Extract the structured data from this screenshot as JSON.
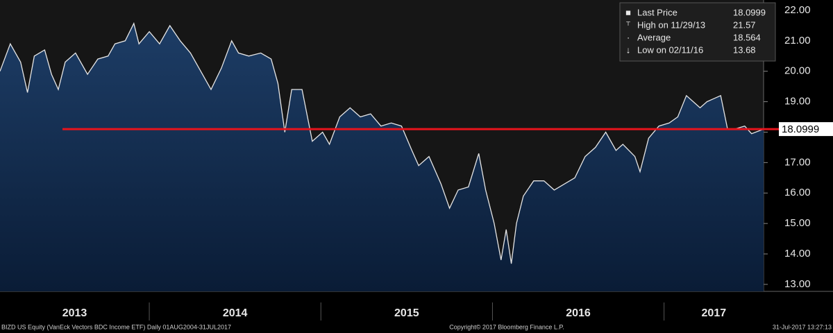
{
  "chart_data": {
    "type": "area",
    "x": [
      2013.13,
      2013.19,
      2013.25,
      2013.29,
      2013.33,
      2013.39,
      2013.43,
      2013.47,
      2013.51,
      2013.57,
      2013.64,
      2013.7,
      2013.76,
      2013.8,
      2013.86,
      2013.91,
      2013.94,
      2014.0,
      2014.06,
      2014.12,
      2014.18,
      2014.24,
      2014.3,
      2014.36,
      2014.42,
      2014.48,
      2014.52,
      2014.58,
      2014.65,
      2014.71,
      2014.75,
      2014.79,
      2014.83,
      2014.89,
      2014.95,
      2015.01,
      2015.05,
      2015.11,
      2015.17,
      2015.23,
      2015.29,
      2015.35,
      2015.41,
      2015.47,
      2015.53,
      2015.57,
      2015.63,
      2015.7,
      2015.75,
      2015.8,
      2015.86,
      2015.92,
      2015.96,
      2016.01,
      2016.05,
      2016.08,
      2016.11,
      2016.14,
      2016.18,
      2016.24,
      2016.3,
      2016.36,
      2016.42,
      2016.48,
      2016.54,
      2016.6,
      2016.66,
      2016.72,
      2016.76,
      2016.83,
      2016.86,
      2016.91,
      2016.97,
      2017.03,
      2017.08,
      2017.13,
      2017.17,
      2017.21,
      2017.25,
      2017.29,
      2017.33,
      2017.37,
      2017.41,
      2017.47,
      2017.51,
      2017.58
    ],
    "values": [
      20.0,
      20.9,
      20.3,
      19.3,
      20.5,
      20.7,
      19.9,
      19.4,
      20.3,
      20.6,
      19.9,
      20.4,
      20.5,
      20.9,
      21.0,
      21.57,
      20.9,
      21.3,
      20.9,
      21.5,
      21.0,
      20.6,
      20.0,
      19.4,
      20.1,
      21.0,
      20.6,
      20.5,
      20.6,
      20.4,
      19.6,
      18.0,
      19.4,
      19.4,
      17.7,
      18.0,
      17.6,
      18.5,
      18.8,
      18.5,
      18.6,
      18.2,
      18.3,
      18.2,
      17.4,
      16.9,
      17.2,
      16.3,
      15.5,
      16.1,
      16.2,
      17.3,
      16.1,
      15.0,
      13.8,
      14.8,
      13.68,
      15.0,
      15.9,
      16.4,
      16.4,
      16.1,
      16.3,
      16.5,
      17.2,
      17.5,
      18.0,
      17.4,
      17.6,
      17.2,
      16.7,
      17.8,
      18.2,
      18.3,
      18.5,
      19.2,
      19.0,
      18.8,
      19.0,
      19.1,
      19.2,
      18.1,
      18.1,
      18.2,
      17.95,
      18.0999
    ],
    "color": "#e6e6e6",
    "xlim": [
      2013.13,
      2017.58
    ],
    "xticks": [
      {
        "value": 2013,
        "label": "2013"
      },
      {
        "value": 2014,
        "label": "2014"
      },
      {
        "value": 2015,
        "label": "2015"
      },
      {
        "value": 2016,
        "label": "2016"
      },
      {
        "value": 2017,
        "label": "2017"
      }
    ],
    "ylim": [
      12.77,
      22.34
    ],
    "yticks": [
      {
        "value": 13,
        "label": "13.00"
      },
      {
        "value": 14,
        "label": "14.00"
      },
      {
        "value": 15,
        "label": "15.00"
      },
      {
        "value": 16,
        "label": "16.00"
      },
      {
        "value": 17,
        "label": "17.00"
      },
      {
        "value": 18,
        "label": "18.00"
      },
      {
        "value": 19,
        "label": "19.00"
      },
      {
        "value": 20,
        "label": "20.00"
      },
      {
        "value": 21,
        "label": "21.00"
      },
      {
        "value": 22,
        "label": "22.00"
      }
    ],
    "legend": [
      {
        "label": "Last Price",
        "value": 18.0999
      },
      {
        "label": "High on 11/29/13",
        "value": 21.57
      },
      {
        "label": "Average",
        "value": 18.564
      },
      {
        "label": "Low on 02/11/16",
        "value": 13.68
      }
    ],
    "footer": [
      "BIZD US Equity (VanEck Vectors BDC Income ETF)  Daily 01AUG2004-31JUL2017",
      "Copyright© 2017 Bloomberg Finance L.P.",
      "31-Jul-2017 13:27:13"
    ]
  }
}
